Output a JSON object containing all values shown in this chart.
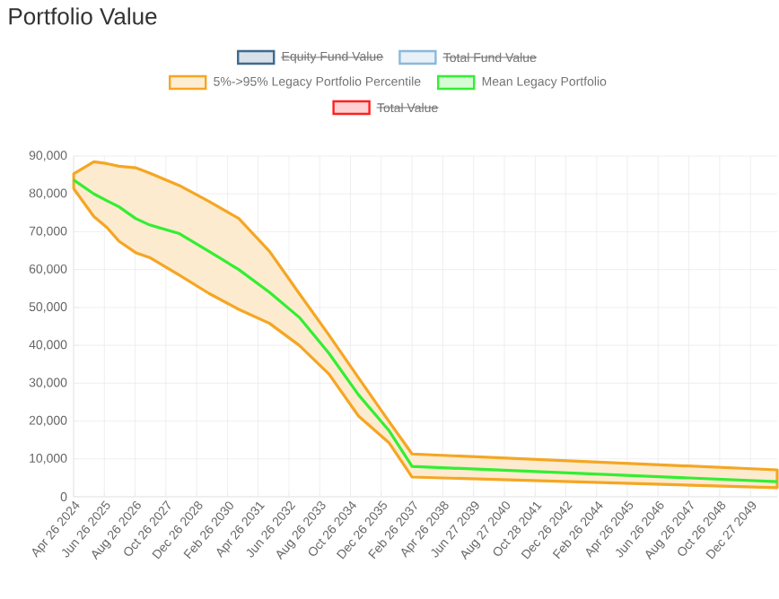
{
  "chart_data": {
    "type": "line",
    "title": "Portfolio Value",
    "x": [
      "2024-04-26",
      "2025-02-01",
      "2025-08-01",
      "2026-01-15",
      "2026-09-01",
      "2027-03-15",
      "2028-05-01",
      "2029-06-15",
      "2030-08-01",
      "2031-10-01",
      "2032-11-15",
      "2034-01-01",
      "2035-02-15",
      "2036-04-15",
      "2037-02-26",
      "2051-01-01"
    ],
    "series": [
      {
        "name": "Equity Fund Value",
        "color": "#3e6a8f",
        "values": [
          null,
          null,
          null,
          null,
          null,
          null,
          null,
          null,
          null,
          null,
          null,
          null,
          null,
          null,
          null,
          null
        ]
      },
      {
        "name": "Total Fund Value",
        "color": "#8ab9db",
        "values": [
          null,
          null,
          null,
          null,
          null,
          null,
          null,
          null,
          null,
          null,
          null,
          null,
          null,
          null,
          null,
          null
        ]
      },
      {
        "name": "5%->95% Legacy Portfolio Percentile",
        "type": "area",
        "color": "#f5a623",
        "values": [
          null,
          null,
          null,
          null,
          null,
          null,
          null,
          null,
          null,
          null,
          null,
          null,
          null,
          null,
          null,
          null
        ]
      },
      {
        "name": "Mean Legacy Portfolio",
        "color": "#33ee33",
        "values": [
          83700,
          80000,
          78200,
          76600,
          73500,
          71800,
          69500,
          64800,
          60000,
          54000,
          47400,
          37900,
          26900,
          17400,
          8000,
          4000
        ],
        "lower": [
          81400,
          74000,
          71100,
          67500,
          64500,
          63200,
          58500,
          53700,
          49500,
          45800,
          40000,
          32400,
          21300,
          14200,
          5200,
          2400
        ],
        "upper": [
          85300,
          88500,
          88000,
          87300,
          86900,
          85500,
          82200,
          78000,
          73500,
          64800,
          53700,
          42700,
          31400,
          19800,
          11300,
          7100
        ]
      },
      {
        "name": "Total Value",
        "color": "#ff2020",
        "values": [
          null,
          null,
          null,
          null,
          null,
          null,
          null,
          null,
          null,
          null,
          null,
          null,
          null,
          null,
          null,
          null
        ]
      }
    ],
    "xlim": [
      "2024-04-26",
      "2051-01-01"
    ],
    "xticks": [
      {
        "value": "2024-04-26",
        "label": "Apr 26 2024"
      },
      {
        "value": "2025-06-26",
        "label": "Jun 26 2025"
      },
      {
        "value": "2026-08-26",
        "label": "Aug 26 2026"
      },
      {
        "value": "2027-10-26",
        "label": "Oct 26 2027"
      },
      {
        "value": "2028-12-26",
        "label": "Dec 26 2028"
      },
      {
        "value": "2030-02-26",
        "label": "Feb 26 2030"
      },
      {
        "value": "2031-04-26",
        "label": "Apr 26 2031"
      },
      {
        "value": "2032-06-26",
        "label": "Jun 26 2032"
      },
      {
        "value": "2033-08-26",
        "label": "Aug 26 2033"
      },
      {
        "value": "2034-10-26",
        "label": "Oct 26 2034"
      },
      {
        "value": "2035-12-26",
        "label": "Dec 26 2035"
      },
      {
        "value": "2037-02-26",
        "label": "Feb 26 2037"
      },
      {
        "value": "2038-04-26",
        "label": "Apr 26 2038"
      },
      {
        "value": "2039-06-27",
        "label": "Jun 27 2039"
      },
      {
        "value": "2040-08-27",
        "label": "Aug 27 2040"
      },
      {
        "value": "2041-10-28",
        "label": "Oct 28 2041"
      },
      {
        "value": "2042-12-26",
        "label": "Dec 26 2042"
      },
      {
        "value": "2044-02-26",
        "label": "Feb 26 2044"
      },
      {
        "value": "2045-04-26",
        "label": "Apr 26 2045"
      },
      {
        "value": "2046-06-26",
        "label": "Jun 26 2046"
      },
      {
        "value": "2047-08-26",
        "label": "Aug 26 2047"
      },
      {
        "value": "2048-10-26",
        "label": "Oct 26 2048"
      },
      {
        "value": "2049-12-27",
        "label": "Dec 27 2049"
      }
    ],
    "ylim": [
      0,
      90000
    ],
    "yticks": [
      0,
      {
        "value": 10000,
        "label": "10,000"
      },
      {
        "value": 20000,
        "label": "20,000"
      },
      {
        "value": 30000,
        "label": "30,000"
      },
      {
        "value": 40000,
        "label": "40,000"
      },
      {
        "value": 50000,
        "label": "50,000"
      },
      {
        "value": 60000,
        "label": "60,000"
      },
      {
        "value": 70000,
        "label": "70,000"
      },
      {
        "value": 80000,
        "label": "80,000"
      },
      {
        "value": 90000,
        "label": "90,000"
      }
    ],
    "grid": true,
    "legend": "top",
    "marker": "none",
    "line_style": "solid"
  }
}
